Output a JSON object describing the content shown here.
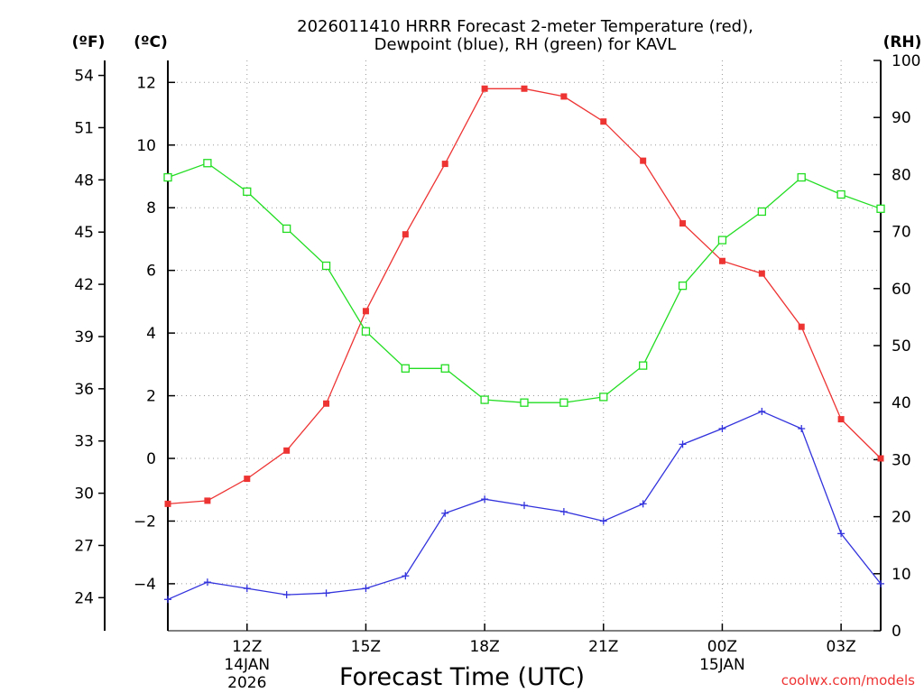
{
  "chart_data": {
    "type": "line",
    "title_line1": "2026011410 HRRR Forecast 2-meter Temperature (red),",
    "title_line2": "Dewpoint (blue), RH (green) for KAVL",
    "xlabel": "Forecast Time (UTC)",
    "unit_labels": {
      "fahrenheit": "(ºF)",
      "celsius": "(ºC)",
      "rh": "(RH)"
    },
    "credit": "coolwx.com/models",
    "x_hours": [
      10,
      11,
      12,
      13,
      14,
      15,
      16,
      17,
      18,
      19,
      20,
      21,
      22,
      23,
      24,
      25,
      26,
      27,
      28
    ],
    "x_ticks": [
      {
        "hour": 12,
        "label": "12Z",
        "sub1": "14JAN",
        "sub2": "2026"
      },
      {
        "hour": 15,
        "label": "15Z",
        "sub1": "",
        "sub2": ""
      },
      {
        "hour": 18,
        "label": "18Z",
        "sub1": "",
        "sub2": ""
      },
      {
        "hour": 21,
        "label": "21Z",
        "sub1": "",
        "sub2": ""
      },
      {
        "hour": 24,
        "label": "00Z",
        "sub1": "15JAN",
        "sub2": ""
      },
      {
        "hour": 27,
        "label": "03Z",
        "sub1": "",
        "sub2": ""
      }
    ],
    "xlim": [
      10,
      28
    ],
    "celsius_axis": {
      "ylim": [
        -5.5,
        12.7
      ],
      "ticks": [
        -4,
        -2,
        0,
        2,
        4,
        6,
        8,
        10,
        12
      ],
      "tick_labels": [
        "−4",
        "−2",
        "0",
        "2",
        "4",
        "6",
        "8",
        "10",
        "12"
      ]
    },
    "fahrenheit_axis": {
      "ticks": [
        24,
        27,
        30,
        33,
        36,
        39,
        42,
        45,
        48,
        51,
        54
      ],
      "tick_labels": [
        "24",
        "27",
        "30",
        "33",
        "36",
        "39",
        "42",
        "45",
        "48",
        "51",
        "54"
      ]
    },
    "rh_axis": {
      "ylim": [
        0,
        100
      ],
      "ticks": [
        0,
        10,
        20,
        30,
        40,
        50,
        60,
        70,
        80,
        90,
        100
      ],
      "tick_labels": [
        "0",
        "10",
        "20",
        "30",
        "40",
        "50",
        "60",
        "70",
        "80",
        "90",
        "100"
      ]
    },
    "series": [
      {
        "name": "Temperature",
        "axis": "celsius",
        "color": "#ee3333",
        "marker": "filled-square",
        "values": [
          -1.45,
          -1.35,
          -0.65,
          0.25,
          1.75,
          4.7,
          7.15,
          9.4,
          11.8,
          11.8,
          11.55,
          10.75,
          9.5,
          7.5,
          6.3,
          5.9,
          4.2,
          1.25,
          0.0
        ]
      },
      {
        "name": "Dewpoint",
        "axis": "celsius",
        "color": "#3333dd",
        "marker": "plus",
        "values": [
          -4.5,
          -3.95,
          -4.15,
          -4.35,
          -4.3,
          -4.15,
          -3.75,
          -1.75,
          -1.3,
          -1.5,
          -1.7,
          -2.0,
          -1.45,
          0.45,
          0.95,
          1.5,
          0.95,
          -2.4,
          -4.0
        ]
      },
      {
        "name": "Relative Humidity",
        "axis": "rh",
        "color": "#22dd22",
        "marker": "open-square",
        "values": [
          79.5,
          82,
          77,
          70.5,
          64,
          52.5,
          46,
          46,
          40.5,
          40,
          40,
          41,
          46.5,
          60.5,
          68.5,
          73.5,
          79.5,
          76.5,
          74
        ]
      }
    ],
    "grid": "dotted"
  }
}
